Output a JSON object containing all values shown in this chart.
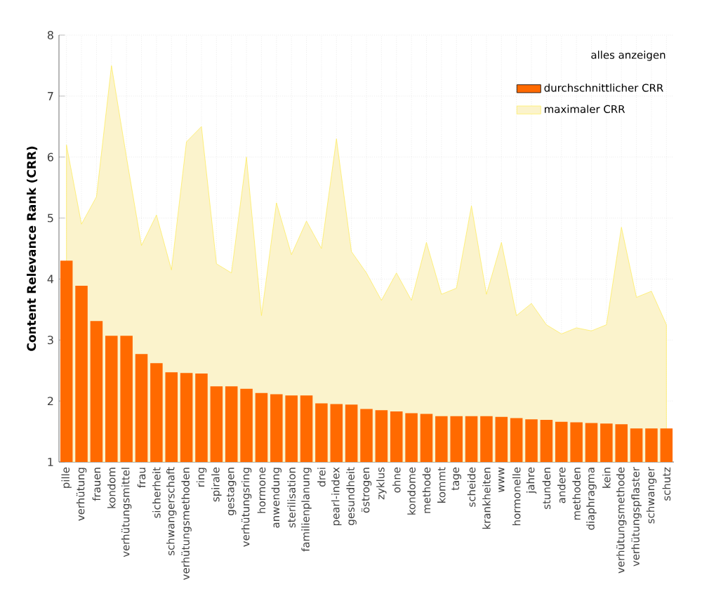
{
  "chart_data": {
    "type": "bar",
    "ylabel": "Content Relevance Rank (CRR)",
    "categories": [
      "pille",
      "verhütung",
      "frauen",
      "kondom",
      "verhütungsmittel",
      "frau",
      "sicherheit",
      "schwangerschaft",
      "verhütungsmethoden",
      "ring",
      "spirale",
      "gestagen",
      "verhütungsring",
      "hormone",
      "anwendung",
      "sterilisation",
      "familienplanung",
      "drei",
      "pearl-index",
      "gesundheit",
      "östrogen",
      "zyklus",
      "ohne",
      "kondome",
      "methode",
      "kommt",
      "tage",
      "scheide",
      "krankheiten",
      "www",
      "hormonelle",
      "jahre",
      "stunden",
      "andere",
      "methoden",
      "diaphragma",
      "kein",
      "verhütungsmethode",
      "verhütungspflaster",
      "schwanger",
      "schutz"
    ],
    "series": [
      {
        "name": "durchschnittlicher CRR",
        "color": "#ff6a00",
        "values": [
          4.3,
          3.89,
          3.31,
          3.07,
          3.07,
          2.77,
          2.62,
          2.47,
          2.46,
          2.45,
          2.24,
          2.24,
          2.2,
          2.13,
          2.11,
          2.09,
          2.09,
          1.96,
          1.95,
          1.94,
          1.87,
          1.85,
          1.83,
          1.8,
          1.79,
          1.75,
          1.75,
          1.75,
          1.75,
          1.74,
          1.72,
          1.7,
          1.69,
          1.66,
          1.65,
          1.64,
          1.63,
          1.62,
          1.55,
          1.55,
          1.55
        ]
      },
      {
        "name": "maximaler CRR",
        "type": "area",
        "color": "#fbf3cc",
        "values": [
          6.2,
          4.9,
          5.35,
          7.5,
          6.0,
          4.55,
          5.05,
          4.15,
          6.25,
          6.5,
          4.25,
          4.1,
          6.0,
          3.4,
          5.25,
          4.4,
          4.95,
          4.5,
          6.3,
          4.45,
          4.1,
          3.65,
          4.1,
          3.65,
          4.6,
          3.75,
          3.85,
          5.2,
          3.75,
          4.6,
          3.4,
          3.6,
          3.25,
          3.1,
          3.2,
          3.15,
          3.25,
          4.85,
          3.7,
          3.8,
          3.25
        ]
      }
    ],
    "ylim": [
      1,
      8
    ],
    "yticks": [
      1,
      2,
      3,
      4,
      5,
      6,
      7,
      8
    ],
    "grid": true,
    "legend": "top right",
    "annotations": [
      "alles anzeigen"
    ]
  }
}
